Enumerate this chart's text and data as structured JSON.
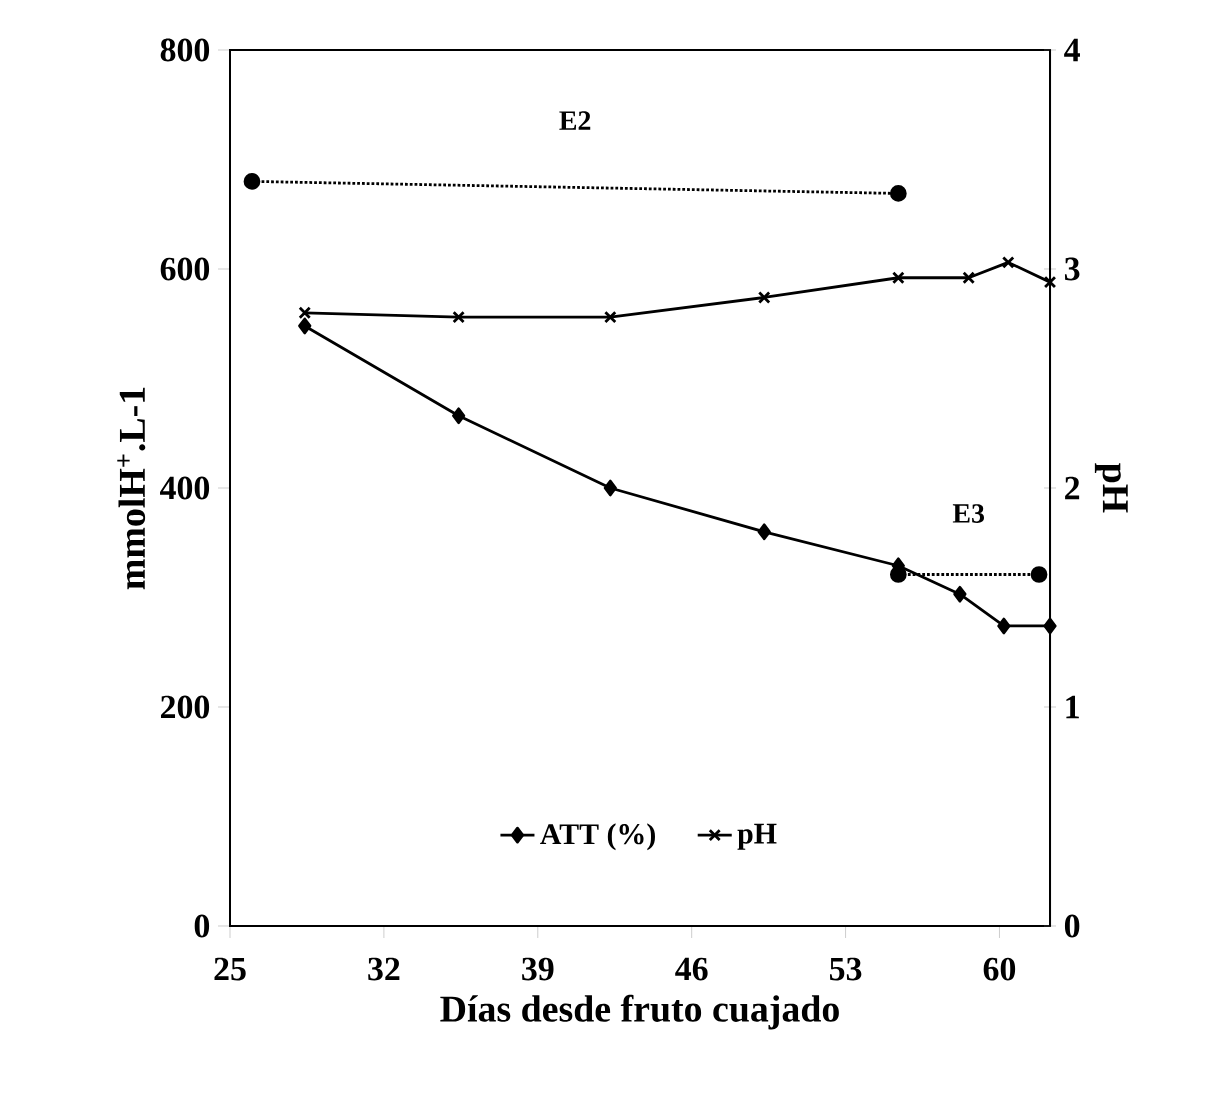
{
  "chart_data": {
    "type": "line",
    "xlabel": "Días desde fruto cuajado",
    "ylabel": "mmolH$^{+}$.L-1",
    "y2label": "pH",
    "xlim": [
      25,
      62.3
    ],
    "xticks": [
      25,
      32,
      39,
      46,
      53,
      60
    ],
    "ylim": [
      0,
      800
    ],
    "yticks": [
      0,
      200,
      400,
      600,
      800
    ],
    "y2lim": [
      0,
      4
    ],
    "y2ticks": [
      0,
      1,
      2,
      3,
      4
    ],
    "legend": "bottom",
    "series": [
      {
        "name": "ATT (%)",
        "color": "#000000",
        "marker": "diamond",
        "line_style": "solid",
        "x": [
          28.4,
          35.4,
          42.3,
          49.3,
          55.4,
          58.2,
          60.2,
          62.3
        ],
        "values": [
          548,
          466,
          400,
          360,
          329,
          303,
          274,
          274
        ]
      },
      {
        "name": "pH",
        "color": "#000000",
        "marker": "cross",
        "line_style": "solid",
        "axis": "y2",
        "x": [
          28.4,
          35.4,
          42.3,
          49.3,
          55.4,
          58.6,
          60.4,
          62.3
        ],
        "values": [
          2.8,
          2.78,
          2.78,
          2.87,
          2.96,
          2.96,
          3.03,
          2.94
        ]
      },
      {
        "color": "#000000",
        "marker": "circle",
        "line_style": "dotted",
        "x": [
          26,
          55.4
        ],
        "values": [
          680,
          669
        ]
      },
      {
        "color": "#000000",
        "marker": "circle",
        "line_style": "dotted",
        "x": [
          55.4,
          61.8
        ],
        "values": [
          321,
          321
        ]
      }
    ],
    "annotations": [
      "E2",
      "E3"
    ]
  }
}
